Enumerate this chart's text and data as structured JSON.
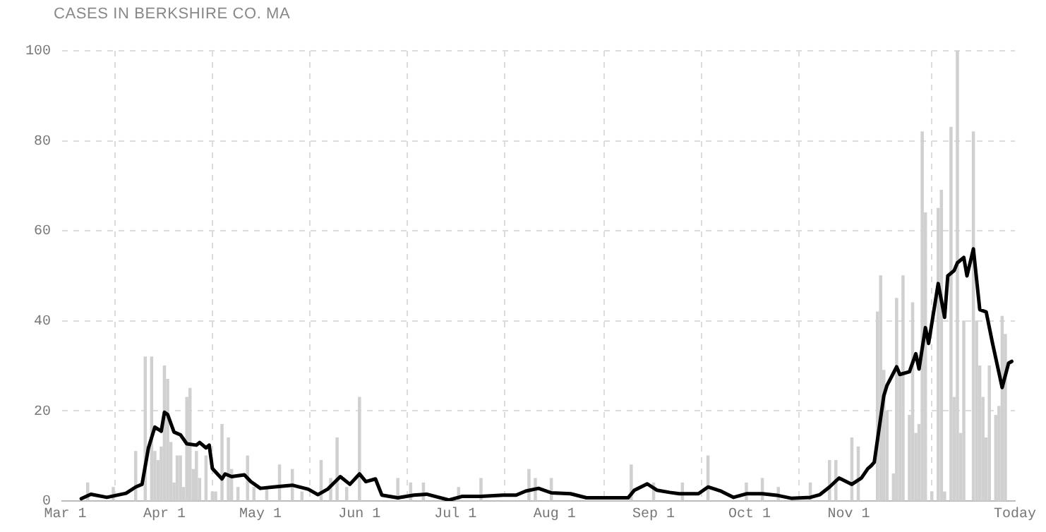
{
  "chart_data": {
    "type": "bar",
    "title": "CASES IN BERKSHIRE CO. MA",
    "xlim": [
      "--02-29",
      "--12-23"
    ],
    "xticks": [
      {
        "value": "--03-01",
        "label": "Mar 1"
      },
      {
        "value": "--04-01",
        "label": "Apr 1"
      },
      {
        "value": "--05-01",
        "label": "May 1"
      },
      {
        "value": "--06-01",
        "label": "Jun 1"
      },
      {
        "value": "--07-01",
        "label": "Jul 1"
      },
      {
        "value": "--08-01",
        "label": "Aug 1"
      },
      {
        "value": "--09-01",
        "label": "Sep 1"
      },
      {
        "value": "--10-01",
        "label": "Oct 1"
      },
      {
        "value": "--11-01",
        "label": "Nov 1"
      },
      {
        "value": "--12-23",
        "label": "Today"
      }
    ],
    "ylim": [
      0,
      100
    ],
    "yticks": [
      0,
      20,
      40,
      60,
      80,
      100
    ],
    "grid": true,
    "marker": "none",
    "series": [
      {
        "color": "#d0d0d0",
        "x": [
          "--03-08",
          "--03-16",
          "--03-23",
          "--03-26",
          "--03-28",
          "--03-29",
          "--03-30",
          "--03-31",
          "--04-01",
          "--04-02",
          "--04-03",
          "--04-04",
          "--04-05",
          "--04-06",
          "--04-07",
          "--04-08",
          "--04-09",
          "--04-10",
          "--04-11",
          "--04-12",
          "--04-14",
          "--04-16",
          "--04-17",
          "--04-19",
          "--04-21",
          "--04-22",
          "--04-24",
          "--04-27",
          "--04-29",
          "--05-03",
          "--05-07",
          "--05-11",
          "--05-14",
          "--05-20",
          "--05-23",
          "--05-25",
          "--05-28",
          "--06-01",
          "--06-13",
          "--06-17",
          "--06-21",
          "--07-02",
          "--07-09",
          "--07-24",
          "--07-26",
          "--07-31",
          "--08-25",
          "--09-01",
          "--09-10",
          "--09-18",
          "--09-30",
          "--10-05",
          "--10-10",
          "--10-20",
          "--10-26",
          "--10-28",
          "--11-02",
          "--11-04",
          "--11-10",
          "--11-11",
          "--11-12",
          "--11-13",
          "--11-15",
          "--11-16",
          "--11-17",
          "--11-18",
          "--11-20",
          "--11-21",
          "--11-22",
          "--11-23",
          "--11-24",
          "--11-25",
          "--11-27",
          "--11-29",
          "--11-30",
          "--12-01",
          "--12-03",
          "--12-04",
          "--12-05",
          "--12-06",
          "--12-07",
          "--12-10",
          "--12-11",
          "--12-12",
          "--12-13",
          "--12-14",
          "--12-15",
          "--12-17",
          "--12-18",
          "--12-19",
          "--12-20"
        ],
        "values": [
          4,
          3,
          11,
          32,
          32,
          11,
          9,
          12,
          30,
          27,
          13,
          4,
          10,
          10,
          3,
          23,
          25,
          7,
          11,
          5,
          10,
          2,
          2,
          17,
          14,
          7,
          3,
          10,
          3,
          3,
          8,
          7,
          2,
          9,
          5,
          14,
          3,
          23,
          5,
          4,
          4,
          3,
          5,
          7,
          5,
          5,
          8,
          4,
          4,
          10,
          4,
          5,
          3,
          4,
          9,
          9,
          14,
          12,
          42,
          50,
          29,
          20,
          6,
          45,
          28,
          50,
          19,
          44,
          15,
          17,
          82,
          64,
          2,
          65,
          69,
          2,
          83,
          23,
          100,
          15,
          40,
          82,
          40,
          30,
          23,
          14,
          30,
          19,
          21,
          41,
          37
        ]
      },
      {
        "type": "line",
        "color": "#000000",
        "x": [
          "--03-06",
          "--03-09",
          "--03-14",
          "--03-20",
          "--03-23",
          "--03-25",
          "--03-27",
          "--03-29",
          "--03-31",
          "--04-01",
          "--04-02",
          "--04-04",
          "--04-06",
          "--04-08",
          "--04-11",
          "--04-12",
          "--04-14",
          "--04-15",
          "--04-16",
          "--04-19",
          "--04-20",
          "--04-22",
          "--04-26",
          "--04-28",
          "--05-01",
          "--05-05",
          "--05-11",
          "--05-16",
          "--05-19",
          "--05-22",
          "--05-26",
          "--05-29",
          "--06-01",
          "--06-03",
          "--06-06",
          "--06-08",
          "--06-13",
          "--06-18",
          "--06-22",
          "--06-29",
          "--07-03",
          "--07-09",
          "--07-16",
          "--07-20",
          "--07-23",
          "--07-27",
          "--07-31",
          "--08-06",
          "--08-11",
          "--08-24",
          "--08-26",
          "--08-30",
          "--09-02",
          "--09-06",
          "--09-09",
          "--09-15",
          "--09-18",
          "--09-22",
          "--09-26",
          "--09-30",
          "--10-05",
          "--10-10",
          "--10-14",
          "--10-20",
          "--10-23",
          "--10-26",
          "--10-29",
          "--11-02",
          "--11-05",
          "--11-07",
          "--11-08",
          "--11-09",
          "--11-12",
          "--11-13",
          "--11-16",
          "--11-17",
          "--11-20",
          "--11-22",
          "--11-23",
          "--11-25",
          "--11-26",
          "--11-29",
          "--12-01",
          "--12-02",
          "--12-04",
          "--12-05",
          "--12-07",
          "--12-08",
          "--12-10",
          "--12-12",
          "--12-14",
          "--12-16",
          "--12-19",
          "--12-21",
          "--12-22"
        ],
        "values": [
          0.5,
          1.5,
          0.8,
          1.7,
          3.1,
          3.7,
          11.8,
          16.4,
          15.5,
          19.7,
          19.2,
          15.3,
          14.7,
          12.7,
          12.4,
          13,
          11.8,
          12.4,
          7.2,
          4.9,
          6,
          5.4,
          5.8,
          4.3,
          2.8,
          3.1,
          3.5,
          2.6,
          1.4,
          2.6,
          5.4,
          3.7,
          6,
          4.3,
          4.9,
          1.3,
          0.7,
          1.3,
          1.5,
          0.2,
          1,
          1,
          1.3,
          1.3,
          2.2,
          2.8,
          1.8,
          1.6,
          0.7,
          0.7,
          2.4,
          3.8,
          2.4,
          1.9,
          1.6,
          1.6,
          3.1,
          2.2,
          0.8,
          1.6,
          1.6,
          1.2,
          0.6,
          0.8,
          1.4,
          3.1,
          5.1,
          3.7,
          5.1,
          7.2,
          7.8,
          8.6,
          23.4,
          25.7,
          29.8,
          28.1,
          28.7,
          32.7,
          29.3,
          38.5,
          35,
          48.3,
          40.8,
          50,
          51.2,
          52.9,
          54.1,
          50,
          56,
          42.5,
          42,
          35,
          25.2,
          30.6,
          31
        ]
      }
    ]
  }
}
